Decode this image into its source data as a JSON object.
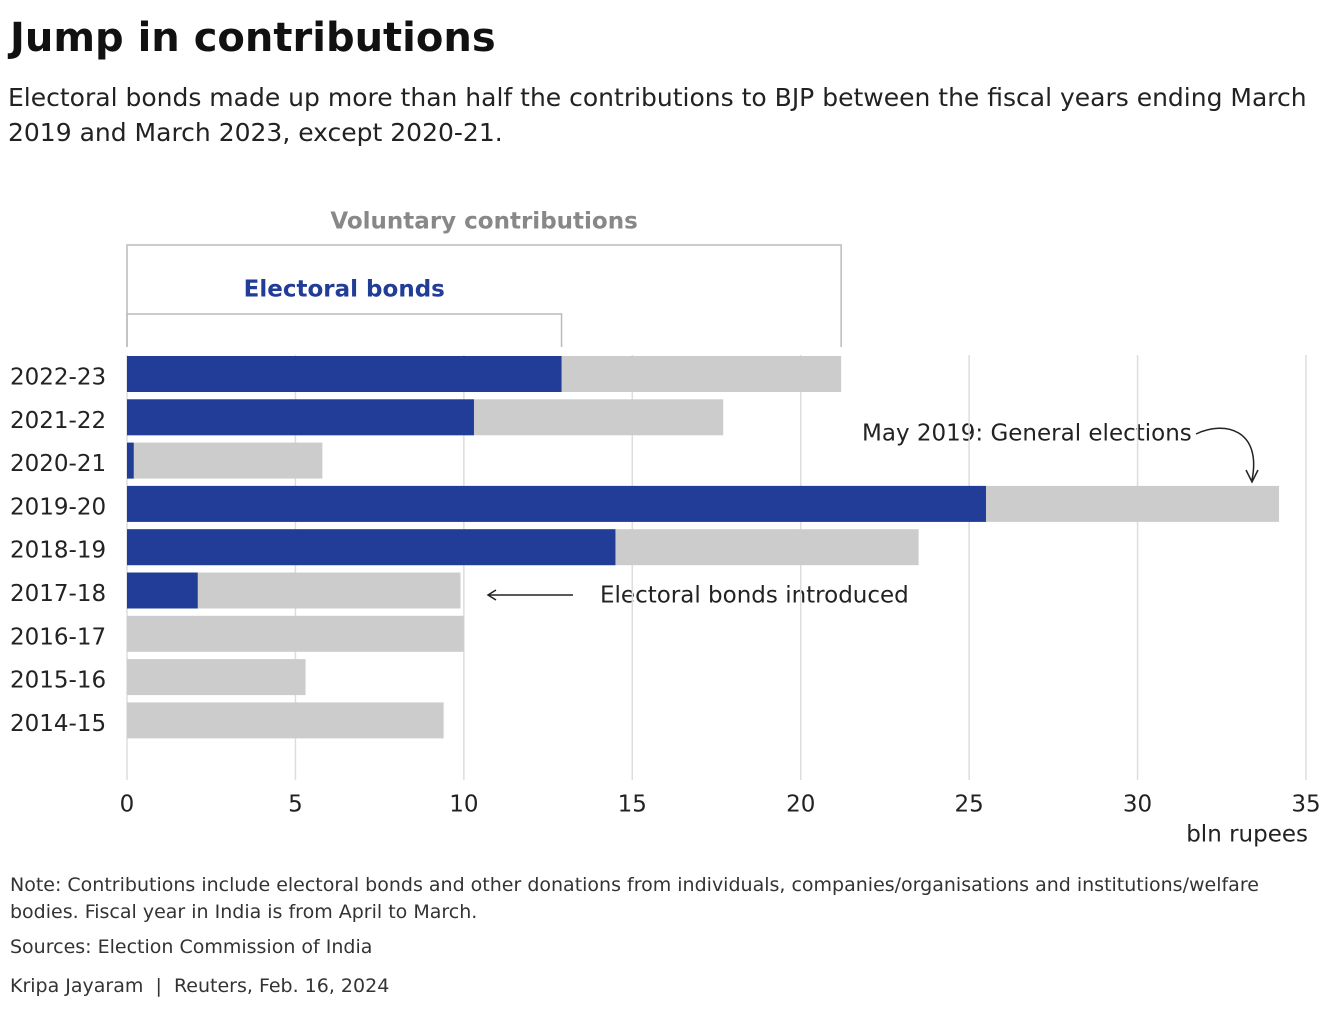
{
  "chart_data": {
    "type": "overlap-bar",
    "title": "Jump in contributions",
    "subtitle": "Electoral bonds made up more than half the contributions to BJP between the fiscal years ending March 2019 and March 2023, except 2020-21.",
    "categories": [
      "2022-23",
      "2021-22",
      "2020-21",
      "2019-20",
      "2018-19",
      "2017-18",
      "2016-17",
      "2015-16",
      "2014-15"
    ],
    "series": [
      {
        "name": "Voluntary contributions",
        "color": "#cccccc",
        "values": [
          21.2,
          17.7,
          5.8,
          34.2,
          23.5,
          9.9,
          10.0,
          5.3,
          9.4
        ]
      },
      {
        "name": "Electoral bonds",
        "color": "#223d97",
        "values": [
          12.9,
          10.3,
          0.2,
          25.5,
          14.5,
          2.1,
          null,
          null,
          null
        ]
      }
    ],
    "xlim": [
      0,
      35
    ],
    "xticks": [
      0,
      5,
      10,
      15,
      20,
      25,
      30,
      35
    ],
    "grid": true,
    "x_label": "bln rupees",
    "annotations": [
      "May 2019: General elections",
      "Electoral bonds introduced"
    ],
    "note": "Note: Contributions include electoral bonds and other donations from individuals, companies/organisations and institutions/welfare bodies. Fiscal year in India is from April to March.",
    "source": "Sources: Election Commission of India",
    "byline": "Kripa Jayaram  |  Reuters, Feb. 16, 2024"
  }
}
